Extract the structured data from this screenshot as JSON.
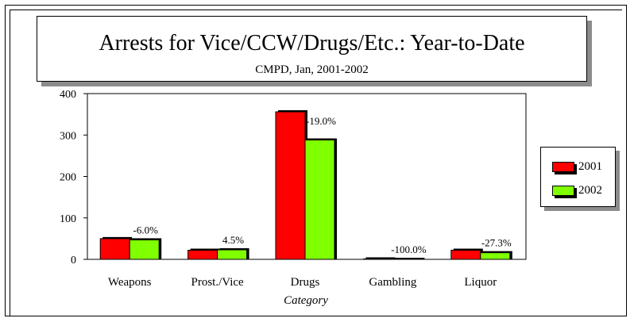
{
  "chart_data": {
    "type": "bar",
    "title": "Arrests for Vice/CCW/Drugs/Etc.: Year-to-Date",
    "subtitle": "CMPD, Jan,  2001-2002",
    "xlabel": "Category",
    "ylabel": "",
    "ylim": [
      0,
      400
    ],
    "yticks": [
      "0",
      "100",
      "200",
      "300",
      "400"
    ],
    "categories": [
      "Weapons",
      "Prost./Vice",
      "Drugs",
      "Gambling",
      "Liquor"
    ],
    "series": [
      {
        "name": "2001",
        "color": "#ff0000",
        "values": [
          50,
          22,
          356,
          1,
          22
        ]
      },
      {
        "name": "2002",
        "color": "#7fff00",
        "values": [
          47,
          23,
          288,
          0,
          16
        ]
      }
    ],
    "annotations": [
      "-6.0%",
      "4.5%",
      "-19.0%",
      "-100.0%",
      "-27.3%"
    ],
    "legend_position": "right",
    "grid": false
  }
}
